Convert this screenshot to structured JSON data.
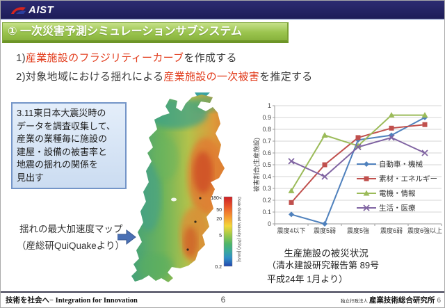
{
  "slide": {
    "header": {
      "logo_text": "AIST"
    },
    "title": "① 一次災害予測シミュレーションサブシステム",
    "goals": [
      {
        "prefix": "1)",
        "highlight": "産業施設のフラジリティーカーブ",
        "suffix": "を作成する"
      },
      {
        "prefix": "2)対象地域における揺れによる",
        "highlight": "産業施設の一次被害",
        "suffix": "を推定する"
      }
    ],
    "info_box_text": "3.11東日本大震災時の\nデータを調査収集して、\n産業の業種毎に施設の\n建屋・設備の被害率と\n地震の揺れの関係を\n見出す",
    "map": {
      "caption_line1": "揺れの最大加速度マップ",
      "caption_line2": "（産総研QuiQuakeより）",
      "colorbar_title": "Peak Ground Velocity (PGV) [cm/s]",
      "colorbar_labels": [
        "180<",
        "50",
        "20",
        "5",
        "0.2"
      ]
    },
    "chart_caption": "生産施設の被災状況",
    "chart_source": "（清水建設研究報告第 89号\n平成24年 1月より）",
    "footer": {
      "left_text": "技術を社会へ− Integration for Innovation",
      "page_number": "6",
      "org_prefix": "独立行政法人",
      "org_name": "産業技術総合研究所",
      "page_number_right": "6"
    },
    "colors": {
      "header_navy": "#232268",
      "title_green": "#95c04a",
      "accent_red": "#e23b1b",
      "info_box_border_blue": "#7495c8",
      "arrow_blue": "#4a70b4"
    }
  },
  "chart_data": {
    "type": "line",
    "title": "生産施設の被災状況",
    "xlabel": "",
    "ylabel": "被害割合(生産施設)",
    "categories": [
      "震度4以下",
      "震度5弱",
      "震度5強",
      "震度6弱",
      "震度6強以上"
    ],
    "ylim": [
      0,
      1
    ],
    "ytick_step": 0.1,
    "grid": true,
    "legend_position": "inside-right",
    "series": [
      {
        "name": "自動車・機械",
        "color": "#4F81BD",
        "marker": "diamond",
        "values": [
          0.08,
          0.0,
          0.71,
          0.75,
          0.9
        ]
      },
      {
        "name": "素材・エネルギー",
        "color": "#C0504D",
        "marker": "square",
        "values": [
          0.18,
          0.5,
          0.73,
          0.81,
          0.84
        ]
      },
      {
        "name": "電機・情報",
        "color": "#9BBB59",
        "marker": "triangle",
        "values": [
          0.28,
          0.75,
          0.66,
          0.92,
          0.92
        ]
      },
      {
        "name": "生活・医療",
        "color": "#8064A2",
        "marker": "x",
        "values": [
          0.53,
          0.4,
          0.65,
          0.73,
          0.6
        ]
      }
    ]
  }
}
